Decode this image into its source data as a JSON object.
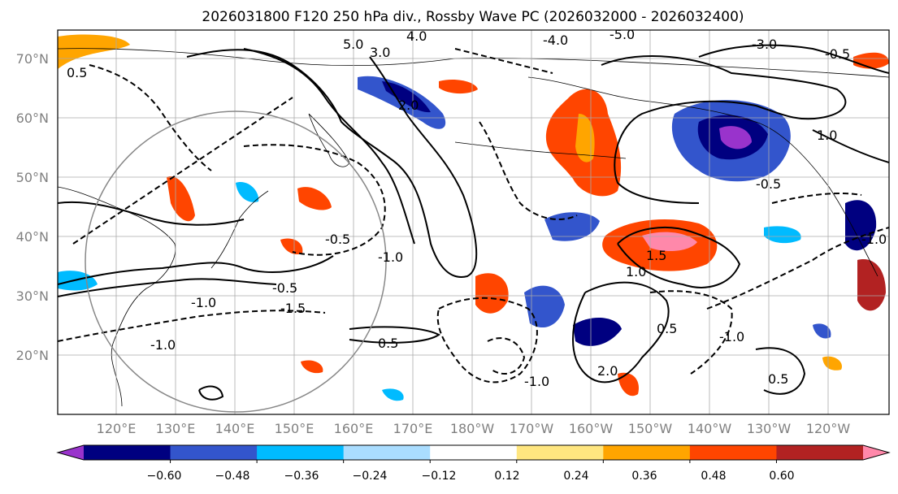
{
  "title": "2026031800 F120 250 hPa div., Rossby Wave PC (2026032000 - 2026032400)",
  "lat_labels": [
    "70°N",
    "60°N",
    "50°N",
    "40°N",
    "30°N",
    "20°N"
  ],
  "lon_labels": [
    "120°E",
    "130°E",
    "140°E",
    "150°E",
    "160°E",
    "170°E",
    "180°W",
    "170°W",
    "160°W",
    "150°W",
    "140°W",
    "130°W",
    "120°W"
  ],
  "contour_labels": [
    "5.0",
    "4.0",
    "3.0",
    "-4.0",
    "-5.0",
    "-3.0",
    "-0.5",
    "0.5",
    "2.0",
    "1.0",
    "1.5",
    "-1.0",
    "-1.5",
    "-0.5",
    "-0.5",
    "-0.5",
    "-1.0",
    "0.5",
    "0.5",
    "1.0",
    "-1.0",
    "2.0",
    "-1.0",
    "0.5",
    "-1.0",
    "-1.0"
  ],
  "colorbar": {
    "colors": [
      "#9933cc",
      "#000080",
      "#3355cc",
      "#00bbff",
      "#aaddff",
      "#ffffff",
      "#ffe680",
      "#ffa500",
      "#ff4500",
      "#b22222",
      "#ff88aa"
    ],
    "tick_labels": [
      "−0.60",
      "−0.48",
      "−0.36",
      "−0.24",
      "−0.12",
      "0.12",
      "0.24",
      "0.36",
      "0.48",
      "0.60"
    ]
  }
}
